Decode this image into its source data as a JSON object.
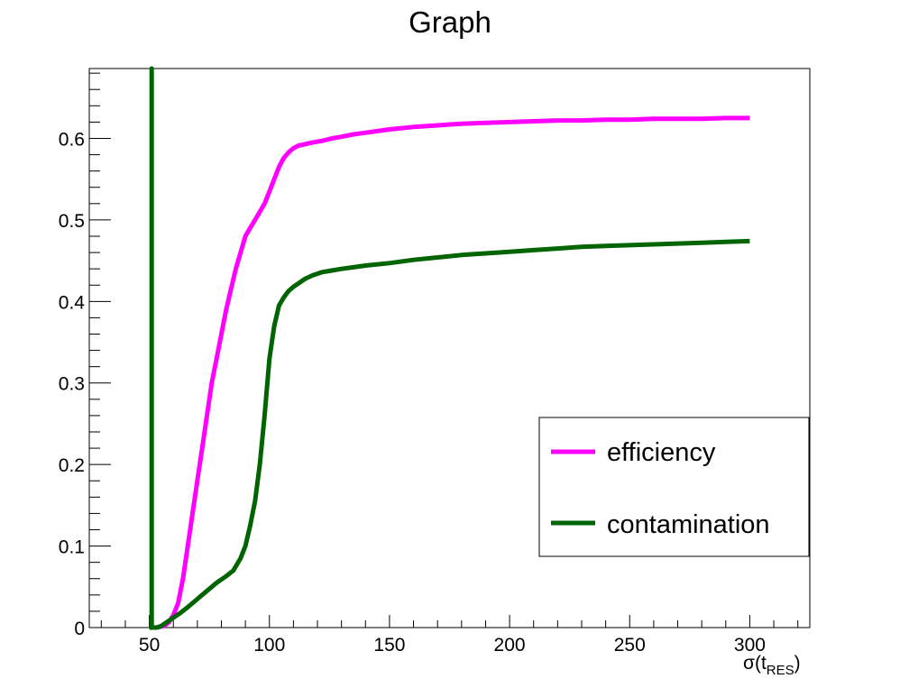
{
  "chart_data": {
    "type": "line",
    "title": "Graph",
    "xlabel": "σ(t",
    "xlabel_sub": "RES",
    "xlabel_close": ")",
    "ylabel": "",
    "xlim": [
      25,
      325
    ],
    "ylim": [
      0,
      0.6857
    ],
    "x_ticks": [
      50,
      100,
      150,
      200,
      250,
      300
    ],
    "x_tick_labels": [
      "50",
      "100",
      "150",
      "200",
      "250",
      "300"
    ],
    "y_ticks": [
      0,
      0.1,
      0.2,
      0.3,
      0.4,
      0.5,
      0.6
    ],
    "y_tick_labels": [
      "0",
      "0.1",
      "0.2",
      "0.3",
      "0.4",
      "0.5",
      "0.6"
    ],
    "grid": false,
    "legend_position": "right-lower",
    "series": [
      {
        "name": "efficiency",
        "color": "#ff00ff",
        "x": [
          50,
          53,
          56,
          58,
          60,
          62,
          64,
          66,
          68,
          70,
          72,
          74,
          76,
          78,
          80,
          82,
          84,
          86,
          88,
          90,
          92,
          94,
          96,
          98,
          100,
          102,
          104,
          106,
          108,
          110,
          112,
          115,
          118,
          122,
          126,
          130,
          135,
          140,
          145,
          150,
          160,
          170,
          180,
          190,
          200,
          210,
          220,
          230,
          240,
          250,
          260,
          270,
          280,
          290,
          300
        ],
        "y": [
          0.0,
          0.0,
          0.002,
          0.006,
          0.015,
          0.03,
          0.06,
          0.1,
          0.14,
          0.18,
          0.22,
          0.26,
          0.3,
          0.33,
          0.36,
          0.39,
          0.415,
          0.44,
          0.46,
          0.48,
          0.49,
          0.5,
          0.51,
          0.52,
          0.535,
          0.55,
          0.565,
          0.576,
          0.583,
          0.588,
          0.591,
          0.593,
          0.595,
          0.597,
          0.6,
          0.602,
          0.605,
          0.607,
          0.609,
          0.611,
          0.614,
          0.616,
          0.618,
          0.619,
          0.62,
          0.621,
          0.622,
          0.622,
          0.623,
          0.623,
          0.624,
          0.624,
          0.624,
          0.625,
          0.625
        ]
      },
      {
        "name": "contamination",
        "color": "#006400",
        "x": [
          50,
          51,
          51,
          51,
          53,
          55,
          57,
          60,
          63,
          66,
          70,
          74,
          78,
          82,
          85,
          88,
          90,
          92,
          94,
          96,
          98,
          100,
          102,
          104,
          106,
          108,
          110,
          112,
          115,
          118,
          122,
          126,
          130,
          135,
          140,
          150,
          160,
          170,
          180,
          190,
          200,
          210,
          220,
          230,
          240,
          250,
          260,
          270,
          280,
          290,
          300
        ],
        "y": [
          0.0,
          0.0,
          0.6857,
          0.0,
          0.0,
          0.002,
          0.006,
          0.012,
          0.018,
          0.025,
          0.035,
          0.045,
          0.055,
          0.063,
          0.07,
          0.085,
          0.1,
          0.125,
          0.155,
          0.2,
          0.26,
          0.33,
          0.37,
          0.395,
          0.405,
          0.413,
          0.418,
          0.422,
          0.428,
          0.432,
          0.436,
          0.438,
          0.44,
          0.442,
          0.444,
          0.447,
          0.451,
          0.454,
          0.457,
          0.459,
          0.461,
          0.463,
          0.465,
          0.467,
          0.468,
          0.469,
          0.47,
          0.471,
          0.472,
          0.473,
          0.474
        ]
      }
    ]
  }
}
